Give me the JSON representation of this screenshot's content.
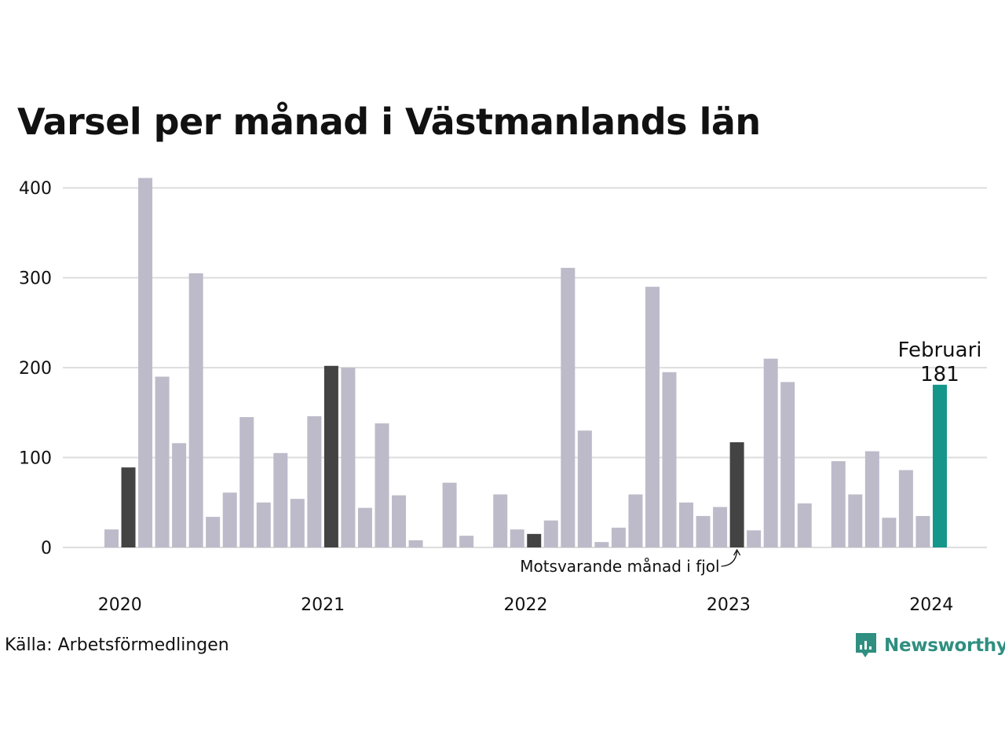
{
  "chart_data": {
    "type": "bar",
    "title": "Varsel per månad i Västmanlands län",
    "xlabel": "",
    "ylabel": "",
    "ylim": [
      0,
      420
    ],
    "y_ticks": [
      0,
      100,
      200,
      300,
      400
    ],
    "x_tick_labels": [
      "2020",
      "2021",
      "2022",
      "2023",
      "2024"
    ],
    "grid": true,
    "categories": [
      "2020-01",
      "2020-02",
      "2020-03",
      "2020-04",
      "2020-05",
      "2020-06",
      "2020-07",
      "2020-08",
      "2020-09",
      "2020-10",
      "2020-11",
      "2020-12",
      "2021-01",
      "2021-02",
      "2021-03",
      "2021-04",
      "2021-05",
      "2021-06",
      "2021-07",
      "2021-08",
      "2021-09",
      "2021-10",
      "2021-11",
      "2021-12",
      "2022-01",
      "2022-02",
      "2022-03",
      "2022-04",
      "2022-05",
      "2022-06",
      "2022-07",
      "2022-08",
      "2022-09",
      "2022-10",
      "2022-11",
      "2022-12",
      "2023-01",
      "2023-02",
      "2023-03",
      "2023-04",
      "2023-05",
      "2023-06",
      "2023-07",
      "2023-08",
      "2023-09",
      "2023-10",
      "2023-11",
      "2023-12",
      "2024-01",
      "2024-02"
    ],
    "values": [
      20,
      89,
      411,
      190,
      116,
      305,
      34,
      61,
      145,
      50,
      105,
      54,
      146,
      202,
      200,
      44,
      138,
      58,
      8,
      0,
      72,
      13,
      0,
      59,
      20,
      15,
      30,
      311,
      130,
      6,
      22,
      59,
      290,
      195,
      50,
      35,
      45,
      117,
      19,
      210,
      184,
      49,
      0,
      96,
      59,
      107,
      33,
      86,
      35,
      181
    ],
    "same_month_last_year_indices": [
      1,
      13,
      25,
      37
    ],
    "highlight_index": 49,
    "highlight_label": "Februari",
    "highlight_value_label": "181",
    "annotation": "Motsvarande månad i fjol",
    "colors": {
      "default": "#bdbbc9",
      "same_month_last_year": "#434343",
      "highlight": "#14968a",
      "grid": "#dddddd"
    }
  },
  "source": "Källa: Arbetsförmedlingen",
  "brand": {
    "name": "Newsworthy",
    "logo_icon": "bar-chart-speech-bubble-icon",
    "color": "#2f8f80"
  }
}
